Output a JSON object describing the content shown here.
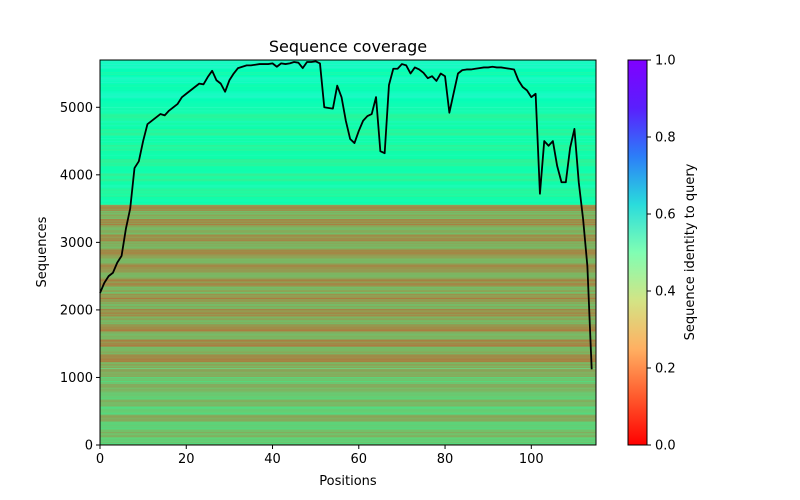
{
  "chart_data": {
    "type": "heatmap",
    "title": "Sequence coverage",
    "xlabel": "Positions",
    "ylabel": "Sequences",
    "xlim": [
      0,
      115
    ],
    "ylim": [
      0,
      5700
    ],
    "xticks": [
      0,
      20,
      40,
      60,
      80,
      100
    ],
    "yticks": [
      0,
      1000,
      2000,
      3000,
      4000,
      5000
    ],
    "colorbar": {
      "label": "Sequence identity to query",
      "range": [
        0.0,
        1.0
      ],
      "ticks": [
        "0.0",
        "0.2",
        "0.4",
        "0.6",
        "0.8",
        "1.0"
      ],
      "colormap": "rainbow_r"
    },
    "identity_bands": [
      {
        "seq_range": [
          0,
          1130
        ],
        "identity": 0.28
      },
      {
        "seq_range": [
          1130,
          3550
        ],
        "identity": 0.22
      },
      {
        "seq_range": [
          3550,
          5000
        ],
        "identity": 0.45
      },
      {
        "seq_range": [
          5000,
          5700
        ],
        "identity": 0.52
      }
    ],
    "series": [
      {
        "type": "line",
        "color": "#000000",
        "x": [
          0,
          1,
          2,
          3,
          4,
          5,
          6,
          7,
          8,
          9,
          10,
          11,
          12,
          13,
          14,
          15,
          16,
          17,
          18,
          19,
          20,
          21,
          22,
          23,
          24,
          25,
          26,
          27,
          28,
          29,
          30,
          31,
          32,
          33,
          34,
          35,
          36,
          37,
          38,
          39,
          40,
          41,
          42,
          43,
          44,
          45,
          46,
          47,
          48,
          49,
          50,
          51,
          52,
          53,
          54,
          55,
          56,
          57,
          58,
          59,
          60,
          61,
          62,
          63,
          64,
          65,
          66,
          67,
          68,
          69,
          70,
          71,
          72,
          73,
          74,
          75,
          76,
          77,
          78,
          79,
          80,
          81,
          82,
          83,
          84,
          85,
          86,
          87,
          88,
          89,
          90,
          91,
          92,
          93,
          94,
          95,
          96,
          97,
          98,
          99,
          100,
          101,
          102,
          103,
          104,
          105,
          106,
          107,
          108,
          109,
          110,
          111,
          112,
          113,
          114
        ],
        "y": [
          2250,
          2400,
          2500,
          2550,
          2700,
          2800,
          3200,
          3500,
          4100,
          4200,
          4500,
          4750,
          4800,
          4850,
          4900,
          4880,
          4950,
          5000,
          5050,
          5150,
          5200,
          5250,
          5300,
          5350,
          5340,
          5450,
          5540,
          5400,
          5350,
          5230,
          5400,
          5500,
          5580,
          5600,
          5620,
          5620,
          5630,
          5640,
          5640,
          5640,
          5650,
          5600,
          5650,
          5640,
          5650,
          5670,
          5660,
          5580,
          5670,
          5670,
          5680,
          5650,
          5000,
          4990,
          4980,
          5320,
          5150,
          4800,
          4530,
          4470,
          4650,
          4800,
          4870,
          4900,
          5150,
          4350,
          4320,
          5330,
          5570,
          5570,
          5640,
          5620,
          5500,
          5590,
          5560,
          5510,
          5430,
          5460,
          5390,
          5500,
          5460,
          4920,
          5210,
          5500,
          5550,
          5560,
          5560,
          5570,
          5580,
          5590,
          5590,
          5600,
          5590,
          5590,
          5580,
          5570,
          5560,
          5400,
          5300,
          5250,
          5150,
          5200,
          3720,
          4500,
          4430,
          4500,
          4130,
          3890,
          3890,
          4400,
          4680,
          3890,
          3350,
          2650,
          1120
        ]
      }
    ]
  }
}
